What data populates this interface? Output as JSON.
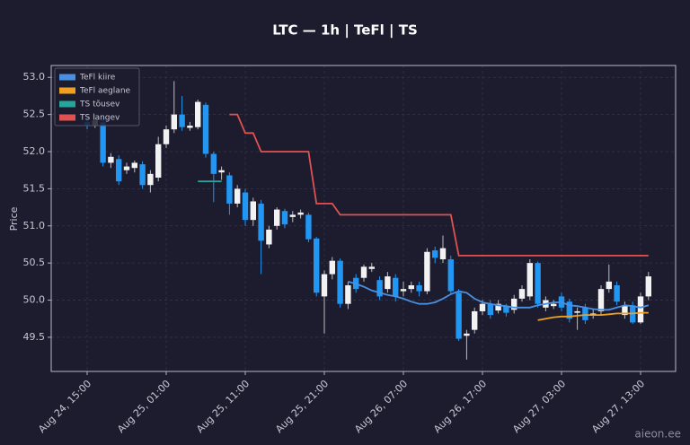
{
  "chart_data": {
    "type": "candlestick",
    "title": "LTC — 1h  |  TeFl  |  TS",
    "y_label": "Price",
    "watermark": "aieon.ee",
    "grid": true,
    "legend": "upper left",
    "up_color": "#f2f2f2",
    "down_color": "#2196f3",
    "categories": [
      "Aug 24, 15:00",
      "Aug 24, 16:00",
      "Aug 24, 17:00",
      "Aug 24, 18:00",
      "Aug 24, 19:00",
      "Aug 24, 20:00",
      "Aug 24, 21:00",
      "Aug 24, 22:00",
      "Aug 24, 23:00",
      "Aug 25, 00:00",
      "Aug 25, 01:00",
      "Aug 25, 02:00",
      "Aug 25, 03:00",
      "Aug 25, 04:00",
      "Aug 25, 05:00",
      "Aug 25, 06:00",
      "Aug 25, 07:00",
      "Aug 25, 08:00",
      "Aug 25, 09:00",
      "Aug 25, 10:00",
      "Aug 25, 11:00",
      "Aug 25, 12:00",
      "Aug 25, 13:00",
      "Aug 25, 14:00",
      "Aug 25, 15:00",
      "Aug 25, 16:00",
      "Aug 25, 17:00",
      "Aug 25, 18:00",
      "Aug 25, 19:00",
      "Aug 25, 20:00",
      "Aug 25, 21:00",
      "Aug 25, 22:00",
      "Aug 25, 23:00",
      "Aug 26, 00:00",
      "Aug 26, 01:00",
      "Aug 26, 02:00",
      "Aug 26, 03:00",
      "Aug 26, 04:00",
      "Aug 26, 05:00",
      "Aug 26, 06:00",
      "Aug 26, 07:00",
      "Aug 26, 08:00",
      "Aug 26, 09:00",
      "Aug 26, 10:00",
      "Aug 26, 11:00",
      "Aug 26, 12:00",
      "Aug 26, 13:00",
      "Aug 26, 14:00",
      "Aug 26, 15:00",
      "Aug 26, 16:00",
      "Aug 26, 17:00",
      "Aug 26, 18:00",
      "Aug 26, 19:00",
      "Aug 26, 20:00",
      "Aug 26, 21:00",
      "Aug 26, 22:00",
      "Aug 26, 23:00",
      "Aug 27, 00:00",
      "Aug 27, 01:00",
      "Aug 27, 02:00",
      "Aug 27, 03:00",
      "Aug 27, 04:00",
      "Aug 27, 05:00",
      "Aug 27, 06:00",
      "Aug 27, 07:00",
      "Aug 27, 08:00",
      "Aug 27, 09:00",
      "Aug 27, 10:00",
      "Aug 27, 11:00",
      "Aug 27, 12:00",
      "Aug 27, 13:00",
      "Aug 27, 14:00"
    ],
    "open": [
      52.4,
      52.35,
      52.4,
      51.85,
      51.9,
      51.75,
      51.78,
      51.83,
      51.55,
      51.65,
      52.1,
      52.3,
      52.5,
      52.32,
      52.33,
      52.63,
      51.97,
      51.72,
      51.68,
      51.3,
      51.45,
      51.08,
      51.3,
      50.75,
      51.0,
      51.2,
      51.12,
      51.15,
      51.15,
      50.83,
      50.05,
      50.35,
      50.53,
      49.95,
      50.3,
      50.3,
      50.42,
      50.27,
      50.15,
      50.3,
      50.12,
      50.15,
      50.2,
      50.12,
      50.67,
      50.55,
      50.55,
      50.1,
      49.52,
      49.6,
      49.85,
      49.95,
      49.86,
      49.92,
      49.87,
      50.02,
      50.05,
      50.5,
      49.9,
      49.92,
      50.05,
      49.98,
      49.83,
      49.9,
      49.8,
      49.85,
      50.15,
      50.2,
      49.8,
      49.93,
      49.7,
      50.05
    ],
    "high": [
      52.48,
      52.5,
      52.5,
      51.98,
      51.95,
      51.85,
      51.88,
      51.87,
      51.75,
      52.2,
      52.35,
      52.95,
      52.75,
      52.4,
      52.7,
      52.66,
      52.0,
      51.8,
      51.72,
      51.55,
      51.5,
      51.38,
      51.35,
      51.0,
      51.25,
      51.23,
      51.2,
      51.22,
      51.18,
      50.85,
      50.4,
      50.58,
      50.56,
      50.25,
      50.35,
      50.48,
      50.5,
      50.32,
      50.38,
      50.35,
      50.25,
      50.25,
      50.25,
      50.7,
      50.72,
      50.87,
      50.6,
      50.15,
      49.6,
      49.9,
      50.0,
      50.0,
      50.0,
      49.95,
      50.07,
      50.2,
      50.55,
      50.52,
      50.05,
      50.0,
      50.1,
      50.02,
      49.9,
      49.95,
      49.88,
      50.2,
      50.48,
      50.25,
      49.98,
      49.98,
      50.1,
      50.38
    ],
    "low": [
      52.3,
      52.32,
      51.8,
      51.78,
      51.55,
      51.7,
      51.72,
      51.5,
      51.45,
      51.6,
      52.05,
      52.25,
      52.28,
      52.28,
      52.3,
      51.92,
      51.32,
      51.62,
      51.15,
      51.25,
      51.0,
      51.0,
      50.35,
      50.7,
      50.95,
      50.97,
      51.05,
      51.1,
      50.78,
      50.05,
      49.55,
      50.28,
      49.9,
      49.88,
      50.1,
      50.25,
      50.38,
      50.0,
      50.1,
      49.98,
      50.05,
      50.1,
      50.05,
      50.08,
      50.5,
      50.5,
      50.08,
      49.45,
      49.2,
      49.55,
      49.8,
      49.75,
      49.82,
      49.78,
      49.82,
      49.98,
      50.0,
      49.9,
      49.85,
      49.88,
      49.85,
      49.7,
      49.6,
      49.68,
      49.75,
      49.8,
      50.1,
      49.93,
      49.75,
      49.68,
      49.68,
      50.0
    ],
    "close": [
      52.35,
      52.42,
      51.85,
      51.93,
      51.6,
      51.8,
      51.85,
      51.55,
      51.7,
      52.1,
      52.3,
      52.5,
      52.33,
      52.35,
      52.67,
      51.97,
      51.7,
      51.75,
      51.3,
      51.5,
      51.08,
      51.33,
      50.8,
      50.95,
      51.22,
      51.02,
      51.15,
      51.18,
      50.82,
      50.1,
      50.35,
      50.53,
      49.95,
      50.2,
      50.15,
      50.45,
      50.45,
      50.05,
      50.32,
      50.05,
      50.15,
      50.2,
      50.12,
      50.65,
      50.57,
      50.7,
      50.12,
      49.48,
      49.55,
      49.85,
      49.95,
      49.8,
      49.95,
      49.83,
      50.02,
      50.15,
      50.5,
      49.95,
      50.0,
      49.95,
      49.9,
      49.75,
      49.85,
      49.73,
      49.82,
      50.15,
      50.25,
      49.98,
      49.92,
      49.7,
      50.05,
      50.32
    ],
    "series": [
      {
        "name": "TeFl kiire",
        "color": "#4a90e2",
        "values": [
          null,
          null,
          null,
          null,
          null,
          null,
          null,
          null,
          null,
          null,
          null,
          null,
          null,
          null,
          null,
          null,
          null,
          null,
          null,
          null,
          null,
          null,
          null,
          null,
          null,
          null,
          null,
          null,
          null,
          null,
          null,
          null,
          null,
          50.25,
          50.22,
          50.18,
          50.13,
          50.1,
          50.07,
          50.05,
          50.02,
          49.98,
          49.95,
          49.95,
          49.97,
          50.02,
          50.08,
          50.12,
          50.1,
          50.02,
          49.97,
          49.95,
          49.93,
          49.92,
          49.9,
          49.9,
          49.9,
          49.93,
          49.95,
          49.97,
          49.97,
          49.93,
          49.92,
          49.9,
          49.88,
          49.87,
          49.87,
          49.9,
          49.93,
          49.92,
          49.9,
          49.93
        ]
      },
      {
        "name": "TeFl aeglane",
        "color": "#f0a020",
        "values": [
          null,
          null,
          null,
          null,
          null,
          null,
          null,
          null,
          null,
          null,
          null,
          null,
          null,
          null,
          null,
          null,
          null,
          null,
          null,
          null,
          null,
          null,
          null,
          null,
          null,
          null,
          null,
          null,
          null,
          null,
          null,
          null,
          null,
          null,
          null,
          null,
          null,
          null,
          null,
          null,
          null,
          null,
          null,
          null,
          null,
          null,
          null,
          null,
          null,
          null,
          null,
          null,
          null,
          null,
          null,
          null,
          null,
          49.73,
          49.75,
          49.77,
          49.78,
          49.78,
          49.79,
          49.8,
          49.8,
          49.8,
          49.81,
          49.82,
          49.82,
          49.82,
          49.83,
          49.83
        ]
      },
      {
        "name": "TS tõusev",
        "color": "#26a69a",
        "values": [
          null,
          null,
          null,
          null,
          null,
          null,
          null,
          null,
          null,
          null,
          null,
          null,
          null,
          null,
          51.6,
          51.6,
          51.6,
          51.6,
          null,
          null,
          null,
          null,
          null,
          null,
          null,
          null,
          null,
          null,
          null,
          null,
          null,
          null,
          null,
          null,
          null,
          null,
          null,
          null,
          null,
          null,
          null,
          null,
          null,
          null,
          null,
          null,
          null,
          null,
          null,
          null,
          null,
          null,
          null,
          null,
          null,
          null,
          null,
          null,
          null,
          null,
          null,
          null,
          null,
          null,
          null,
          null,
          null,
          null,
          null,
          null,
          null,
          null
        ]
      },
      {
        "name": "TS langev",
        "color": "#e05252",
        "values": [
          null,
          null,
          null,
          null,
          null,
          null,
          null,
          null,
          null,
          null,
          null,
          null,
          null,
          null,
          null,
          null,
          null,
          null,
          52.5,
          52.5,
          52.25,
          52.25,
          52.0,
          52.0,
          52.0,
          52.0,
          52.0,
          52.0,
          52.0,
          51.3,
          51.3,
          51.3,
          51.15,
          51.15,
          51.15,
          51.15,
          51.15,
          51.15,
          51.15,
          51.15,
          51.15,
          51.15,
          51.15,
          51.15,
          51.15,
          51.15,
          51.15,
          50.6,
          50.6,
          50.6,
          50.6,
          50.6,
          50.6,
          50.6,
          50.6,
          50.6,
          50.6,
          50.6,
          50.6,
          50.6,
          50.6,
          50.6,
          50.6,
          50.6,
          50.6,
          50.6,
          50.6,
          50.6,
          50.6,
          50.6,
          50.6,
          50.6
        ]
      }
    ],
    "xticks": [
      "Aug 24, 15:00",
      "Aug 25, 01:00",
      "Aug 25, 11:00",
      "Aug 25, 21:00",
      "Aug 26, 07:00",
      "Aug 26, 17:00",
      "Aug 27, 03:00",
      "Aug 27, 13:00"
    ],
    "ylim": [
      49.04,
      53.16
    ],
    "yticks": [
      49.5,
      {
        "value": 50,
        "label": "50.0"
      },
      50.5,
      {
        "value": 51,
        "label": "51.0"
      },
      51.5,
      {
        "value": 52,
        "label": "52.0"
      },
      52.5,
      {
        "value": 53,
        "label": "53.0"
      }
    ]
  }
}
